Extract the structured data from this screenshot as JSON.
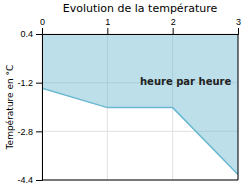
{
  "chart_data": {
    "type": "area",
    "title": "Evolution de la température",
    "ylabel": "Température en °C",
    "annotation": "heure par heure",
    "x": [
      0,
      1,
      2,
      3
    ],
    "values": [
      -1.38,
      -2.02,
      -2.02,
      -4.22
    ],
    "color": "#6ab8d0",
    "xlim": [
      0,
      3
    ],
    "ylim": [
      -4.4,
      0.4
    ],
    "xticks": [
      0,
      1,
      2,
      3
    ],
    "yticks": [
      0.4,
      -1.2,
      -2.8,
      -4.4
    ],
    "grid": true
  }
}
